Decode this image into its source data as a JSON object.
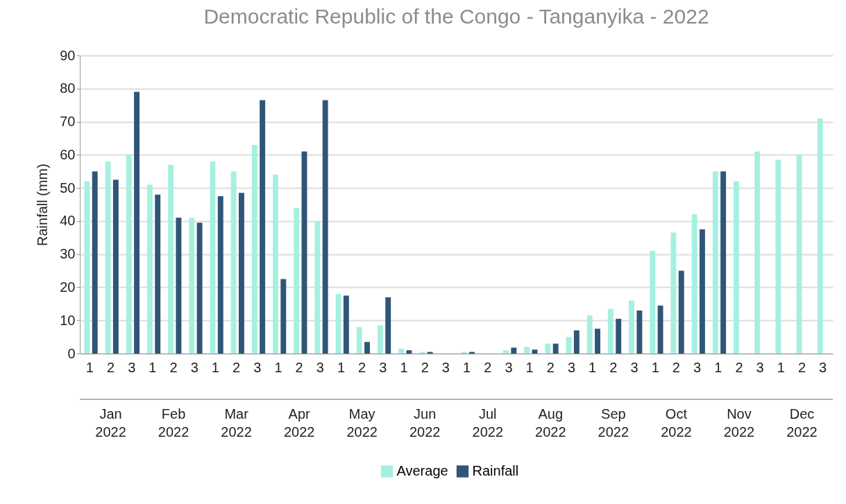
{
  "chart_data": {
    "type": "bar",
    "title": "Democratic Republic of the Congo - Tanganyika - 2022",
    "ylabel": "Rainfall (mm)",
    "categories": [
      "1",
      "2",
      "3",
      "1",
      "2",
      "3",
      "1",
      "2",
      "3",
      "1",
      "2",
      "3",
      "1",
      "2",
      "3",
      "1",
      "2",
      "3",
      "1",
      "2",
      "3",
      "1",
      "2",
      "3",
      "1",
      "2",
      "3",
      "1",
      "2",
      "3",
      "1",
      "2",
      "3",
      "1",
      "2",
      "3"
    ],
    "annotations": [
      "Jan 2022",
      "Feb 2022",
      "Mar 2022",
      "Apr 2022",
      "May 2022",
      "Jun 2022",
      "Jul 2022",
      "Aug 2022",
      "Sep 2022",
      "Oct 2022",
      "Nov 2022",
      "Dec 2022"
    ],
    "series": [
      {
        "name": "Average",
        "color": "#a6f0e0",
        "values": [
          52,
          58,
          60,
          51,
          57,
          41,
          58,
          55,
          63,
          54,
          44,
          40,
          18,
          8,
          8.5,
          1.5,
          0.5,
          0,
          0.5,
          0,
          1,
          2,
          3,
          5,
          11.5,
          13.5,
          16,
          31,
          36.5,
          42,
          55,
          52,
          61,
          58.5,
          60,
          71
        ]
      },
      {
        "name": "Rainfall",
        "color": "#2f5577",
        "values": [
          55,
          52.5,
          79,
          48,
          41,
          39.5,
          47.5,
          48.5,
          76.5,
          22.5,
          61,
          76.5,
          17.5,
          3.5,
          17,
          1,
          0.5,
          0,
          0.5,
          0,
          1.8,
          1.2,
          3,
          7,
          7.5,
          10.5,
          13,
          14.5,
          25,
          37.5,
          55,
          null,
          null,
          null,
          null,
          null
        ]
      }
    ],
    "ylim": [
      0,
      90
    ],
    "yticks": [
      0,
      10,
      20,
      30,
      40,
      50,
      60,
      70,
      80,
      90
    ],
    "grid": "y",
    "legend": "bottom"
  }
}
